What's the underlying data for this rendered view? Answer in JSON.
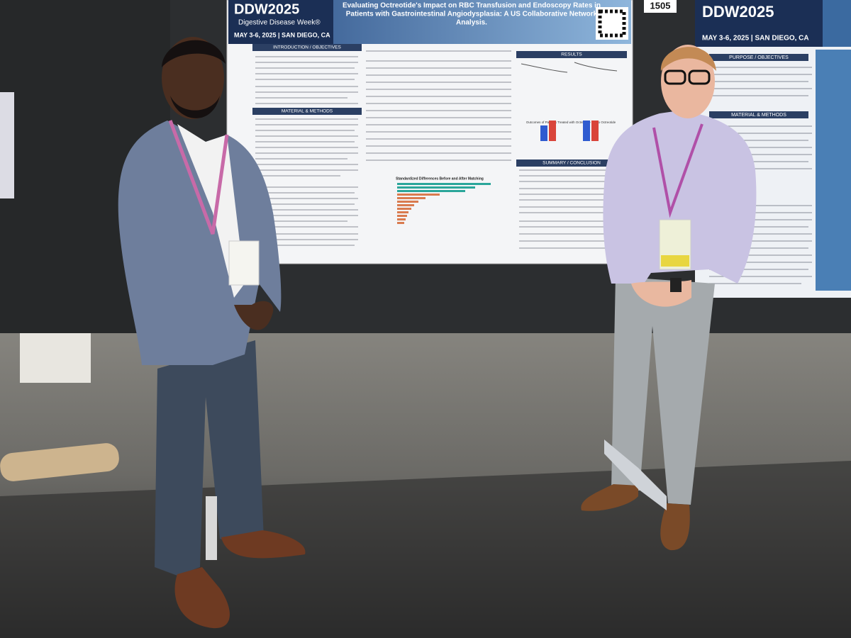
{
  "booth_number": "1505",
  "poster_main": {
    "logo": "DDW2025",
    "logo_subtitle": "Digestive Disease Week®",
    "dates": "MAY 3-6, 2025 | SAN DIEGO, CA",
    "title_lines": [
      "Evaluating Octreotide's Impact on RBC Transfusion and Endoscopy Rates in",
      "Patients with Gastrointestinal Angiodysplasia: A US Collaborative Network",
      "Analysis."
    ],
    "sections": [
      "INTRODUCTION / OBJECTIVES",
      "MATERIAL & METHODS",
      "RESULTS",
      "SUMMARY / CONCLUSION"
    ],
    "figure_titles": [
      "Outcomes of Patients Treated with Octreotide VS no Octreotide",
      "Standardized Differences Before and After Matching"
    ]
  },
  "poster_right": {
    "logo": "DDW2025",
    "dates": "MAY 3-6, 2025 | SAN DIEGO, CA",
    "sections": [
      "PURPOSE / OBJECTIVES",
      "MATERIAL & METHODS"
    ]
  }
}
